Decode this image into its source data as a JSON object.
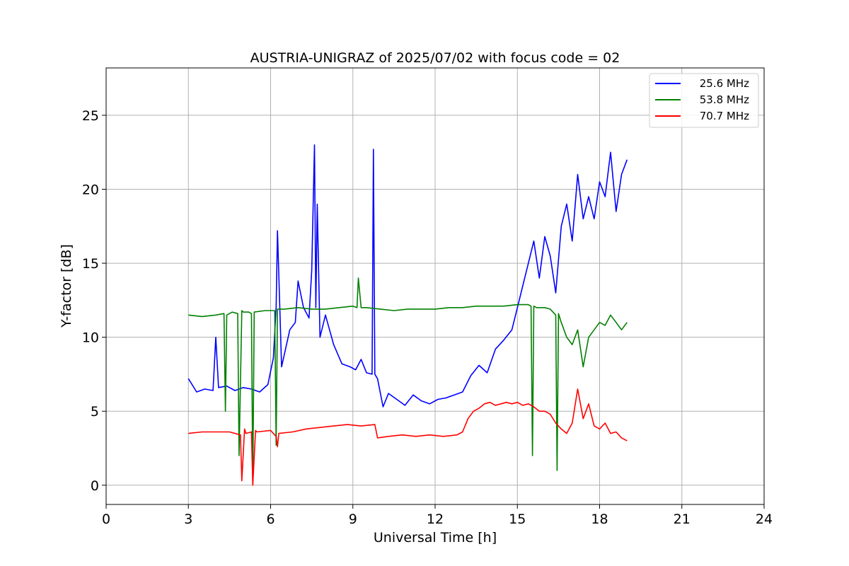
{
  "chart_data": {
    "type": "line",
    "title": "AUSTRIA-UNIGRAZ of 2025/07/02 with focus code = 02",
    "xlabel": "Universal Time [h]",
    "ylabel": "Y-factor [dB]",
    "xlim": [
      0,
      24
    ],
    "ylim": [
      -1.3,
      28.2
    ],
    "xticks": [
      0,
      3,
      6,
      9,
      12,
      15,
      18,
      21,
      24
    ],
    "yticks": [
      0,
      5,
      10,
      15,
      20,
      25
    ],
    "grid": true,
    "legend_position": "top-right",
    "series": [
      {
        "name": "25.6 MHz",
        "color": "#0000ff",
        "x": [
          3.0,
          3.3,
          3.6,
          3.9,
          4.0,
          4.1,
          4.4,
          4.7,
          5.0,
          5.3,
          5.6,
          5.9,
          6.1,
          6.2,
          6.25,
          6.4,
          6.7,
          6.9,
          7.0,
          7.2,
          7.4,
          7.5,
          7.6,
          7.65,
          7.7,
          7.8,
          8.0,
          8.3,
          8.6,
          8.9,
          9.1,
          9.3,
          9.5,
          9.7,
          9.75,
          9.8,
          9.9,
          10.1,
          10.3,
          10.6,
          10.9,
          11.2,
          11.5,
          11.8,
          12.1,
          12.4,
          12.7,
          13.0,
          13.3,
          13.6,
          13.9,
          14.2,
          14.5,
          14.8,
          15.0,
          15.2,
          15.4,
          15.6,
          15.8,
          16.0,
          16.2,
          16.4,
          16.6,
          16.8,
          17.0,
          17.2,
          17.4,
          17.6,
          17.8,
          18.0,
          18.2,
          18.4,
          18.6,
          18.8,
          19.0
        ],
        "y": [
          7.2,
          6.3,
          6.5,
          6.4,
          10.0,
          6.6,
          6.7,
          6.4,
          6.6,
          6.5,
          6.3,
          6.8,
          8.6,
          12.0,
          17.2,
          8.0,
          10.5,
          11.0,
          13.8,
          12.0,
          11.3,
          14.5,
          23.0,
          12.0,
          19.0,
          10.0,
          11.5,
          9.5,
          8.2,
          8.0,
          7.8,
          8.5,
          7.6,
          7.5,
          22.7,
          7.5,
          7.2,
          5.3,
          6.2,
          5.8,
          5.4,
          6.1,
          5.7,
          5.5,
          5.8,
          5.9,
          6.1,
          6.3,
          7.4,
          8.1,
          7.6,
          9.2,
          9.8,
          10.5,
          12.0,
          13.5,
          15.0,
          16.5,
          14.0,
          16.8,
          15.5,
          13.0,
          17.5,
          19.0,
          16.5,
          21.0,
          18.0,
          19.5,
          18.0,
          20.5,
          19.5,
          22.5,
          18.5,
          21.0,
          22.0
        ]
      },
      {
        "name": "53.8 MHz",
        "color": "#008000",
        "x": [
          3.0,
          3.5,
          4.0,
          4.3,
          4.35,
          4.4,
          4.6,
          4.8,
          4.85,
          4.95,
          5.0,
          5.2,
          5.3,
          5.35,
          5.4,
          5.8,
          6.15,
          6.2,
          6.25,
          6.5,
          7.0,
          7.5,
          8.0,
          8.5,
          9.0,
          9.15,
          9.2,
          9.3,
          9.5,
          10.0,
          10.5,
          11.0,
          11.5,
          12.0,
          12.5,
          13.0,
          13.5,
          14.0,
          14.5,
          15.0,
          15.4,
          15.5,
          15.55,
          15.6,
          15.7,
          16.0,
          16.2,
          16.4,
          16.45,
          16.5,
          16.6,
          16.8,
          17.0,
          17.2,
          17.4,
          17.6,
          17.8,
          18.0,
          18.2,
          18.4,
          18.6,
          18.8,
          19.0
        ],
        "y": [
          11.5,
          11.4,
          11.5,
          11.6,
          5.0,
          11.5,
          11.7,
          11.6,
          2.0,
          11.8,
          11.7,
          11.7,
          11.6,
          0.1,
          11.7,
          11.8,
          11.8,
          2.7,
          11.9,
          11.9,
          12.0,
          11.9,
          11.9,
          12.0,
          12.1,
          12.0,
          14.0,
          12.0,
          12.0,
          11.9,
          11.8,
          11.9,
          11.9,
          11.9,
          12.0,
          12.0,
          12.1,
          12.1,
          12.1,
          12.2,
          12.2,
          12.1,
          2.0,
          12.1,
          12.0,
          12.0,
          11.9,
          11.5,
          1.0,
          11.6,
          11.0,
          10.0,
          9.5,
          10.5,
          8.0,
          10.0,
          10.5,
          11.0,
          10.8,
          11.5,
          11.0,
          10.5,
          11.0
        ]
      },
      {
        "name": "70.7 MHz",
        "color": "#ff0000",
        "x": [
          3.0,
          3.5,
          4.0,
          4.5,
          4.9,
          4.95,
          5.05,
          5.1,
          5.3,
          5.35,
          5.45,
          5.5,
          6.0,
          6.2,
          6.25,
          6.3,
          6.8,
          7.3,
          7.8,
          8.3,
          8.8,
          9.3,
          9.8,
          9.9,
          10.3,
          10.8,
          11.3,
          11.8,
          12.3,
          12.8,
          13.0,
          13.2,
          13.4,
          13.6,
          13.8,
          14.0,
          14.2,
          14.4,
          14.6,
          14.8,
          15.0,
          15.2,
          15.4,
          15.6,
          15.8,
          16.0,
          16.2,
          16.4,
          16.6,
          16.8,
          17.0,
          17.2,
          17.4,
          17.6,
          17.8,
          18.0,
          18.2,
          18.4,
          18.6,
          18.8,
          19.0
        ],
        "y": [
          3.5,
          3.6,
          3.6,
          3.6,
          3.4,
          0.3,
          3.8,
          3.5,
          3.6,
          0.0,
          3.7,
          3.6,
          3.7,
          3.3,
          2.6,
          3.5,
          3.6,
          3.8,
          3.9,
          4.0,
          4.1,
          4.0,
          4.1,
          3.2,
          3.3,
          3.4,
          3.3,
          3.4,
          3.3,
          3.4,
          3.6,
          4.5,
          5.0,
          5.2,
          5.5,
          5.6,
          5.4,
          5.5,
          5.6,
          5.5,
          5.6,
          5.4,
          5.5,
          5.3,
          5.0,
          5.0,
          4.8,
          4.2,
          3.8,
          3.5,
          4.2,
          6.5,
          4.5,
          5.5,
          4.0,
          3.8,
          4.2,
          3.5,
          3.6,
          3.2,
          3.0
        ]
      }
    ]
  }
}
